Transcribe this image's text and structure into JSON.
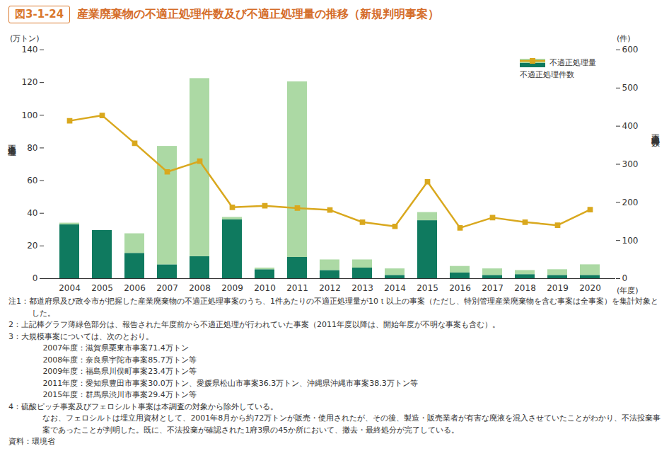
{
  "chart_data": {
    "type": "bar",
    "figure_label": "図3-1-24",
    "title": "産業廃棄物の不適正処理件数及び不適正処理量の推移（新規判明事案）",
    "y_unit": "(万トン)",
    "y_label": "不適正処理量",
    "y2_unit": "(件)",
    "y2_label": "不適正処理件数",
    "x_unit": "(年度)",
    "categories": [
      "2004",
      "2005",
      "2006",
      "2007",
      "2008",
      "2009",
      "2010",
      "2011",
      "2012",
      "2013",
      "2014",
      "2015",
      "2016",
      "2017",
      "2018",
      "2019",
      "2020"
    ],
    "stacked": true,
    "legend": "top-right",
    "series": [
      {
        "name": "不適正処理量",
        "type": "bar",
        "color": "#0f7a5f",
        "values": [
          33,
          29.5,
          15.5,
          8.5,
          13.5,
          36,
          5.5,
          13,
          5,
          6.5,
          2,
          35.5,
          3.5,
          2,
          2.5,
          2,
          2
        ]
      },
      {
        "name": "不適正処理量",
        "type": "bar",
        "color": "#acd9a4",
        "values": [
          1,
          0,
          12,
          72.5,
          109,
          1.5,
          1,
          107.5,
          6.5,
          5,
          4,
          5,
          4,
          4,
          2.5,
          3.5,
          6.5
        ]
      },
      {
        "name": "不適正処理件数",
        "type": "line",
        "axis": "y2",
        "color": "#d9a81e",
        "marker": "square",
        "values": [
          414,
          428,
          355,
          280,
          308,
          187,
          191,
          185,
          180,
          148,
          137,
          254,
          133,
          160,
          148,
          140,
          181
        ]
      }
    ],
    "ylim": [
      0,
      140
    ],
    "yticks": [
      0,
      20,
      40,
      60,
      80,
      100,
      120,
      140
    ],
    "y2lim": [
      0,
      600
    ],
    "y2ticks": [
      0,
      100,
      200,
      300,
      400,
      500,
      600
    ]
  },
  "notes": [
    [
      "注1：都道府県及び政令市が把握した産業廃棄物の不適正処理事案のうち、1件あたりの不適正処理量が10ｔ以上の事案（ただし、特別管理産業廃棄物を含む事案は全事案）を集計対象とした。"
    ],
    [
      "2：上記棒グラフ薄緑色部分は、報告された年度前から不適正処理が行われていた事案（2011年度以降は、開始年度が不明な事案も含む）。"
    ],
    [
      "3：大規模事案については、次のとおり。",
      "2007年度：滋賀県栗東市事案71.4万トン",
      "2008年度：奈良県宇陀市事案85.7万トン等",
      "2009年度：福島県川俣町事案23.4万トン等",
      "2011年度：愛知県豊田市事案30.0万トン、愛媛県松山市事案36.3万トン、沖縄県沖縄市事案38.3万トン等",
      "2015年度：群馬県渋川市事案29.4万トン等"
    ],
    [
      "4：硫酸ピッチ事案及びフェロシルト事案は本調査の対象から除外している。",
      "なお、フェロシルトは埋立用資材として、2001年8月から約72万トンが販売・使用されたが、その後、製造・販売業者が有害な廃液を混入させていたことがわかり、不法投棄事案であったことが判明した。既に、不法投棄が確認された1府3県の45か所において、撤去・最終処分が完了している。"
    ]
  ],
  "source": "資料：環境省"
}
